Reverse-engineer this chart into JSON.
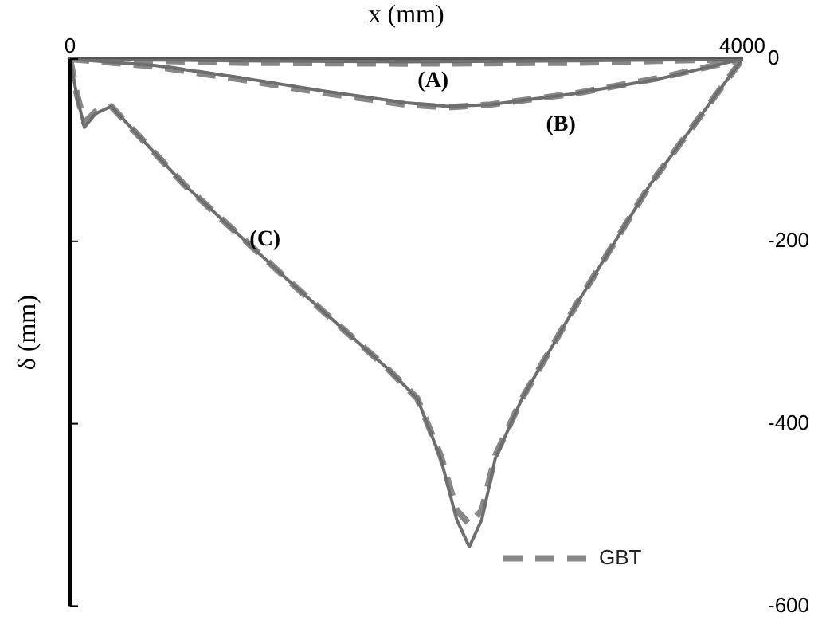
{
  "chart_data": {
    "type": "line",
    "xlabel": "x (mm)",
    "ylabel": "δ (mm)",
    "xlim": [
      0,
      4000
    ],
    "xticks": [
      0,
      4000
    ],
    "ylim": [
      -600,
      0
    ],
    "yticks": [
      0,
      -200,
      -400,
      -600
    ],
    "grid": false,
    "legend": "bottom right",
    "marker": "none",
    "annotations": [
      "(A)",
      "(B)",
      "(C)"
    ],
    "series": [
      {
        "color": "#6e6e6e",
        "line_style": "solid",
        "x": [
          0,
          500,
          1000,
          2000,
          3000,
          3500,
          4000
        ],
        "values": [
          0,
          -1,
          -2,
          -3,
          -2,
          -1,
          0
        ]
      },
      {
        "color": "#6e6e6e",
        "line_style": "solid",
        "x": [
          0,
          500,
          1000,
          1500,
          2000,
          2250,
          2500,
          3000,
          3500,
          4000
        ],
        "values": [
          0,
          -7,
          -20,
          -35,
          -48,
          -52,
          -50,
          -38,
          -22,
          0
        ]
      },
      {
        "color": "#6e6e6e",
        "line_style": "solid",
        "x": [
          0,
          40,
          85,
          150,
          245,
          680,
          1300,
          1880,
          2065,
          2205,
          2300,
          2375,
          2450,
          2530,
          2690,
          3020,
          3450,
          4000
        ],
        "values": [
          0,
          -40,
          -75,
          -60,
          -52,
          -138,
          -243,
          -338,
          -372,
          -438,
          -505,
          -535,
          -505,
          -438,
          -372,
          -267,
          -138,
          0
        ]
      },
      {
        "name": "GBT",
        "color": "#888888",
        "line_style": "dashed",
        "x": [
          0,
          500,
          1000,
          2000,
          3000,
          3500,
          4000
        ],
        "values": [
          0,
          -2,
          -4,
          -5,
          -4,
          -2,
          0
        ]
      },
      {
        "color": "#888888",
        "line_style": "dashed",
        "x": [
          0,
          500,
          1000,
          1500,
          2000,
          2250,
          2500,
          3000,
          3500,
          4000
        ],
        "values": [
          0,
          -8,
          -22,
          -37,
          -50,
          -53,
          -50,
          -38,
          -21,
          0
        ]
      },
      {
        "color": "#888888",
        "line_style": "dashed",
        "x": [
          0,
          40,
          85,
          150,
          245,
          680,
          1300,
          1880,
          2065,
          2205,
          2300,
          2375,
          2450,
          2530,
          2690,
          3020,
          3450,
          4000
        ],
        "values": [
          0,
          -38,
          -70,
          -58,
          -52,
          -138,
          -243,
          -338,
          -372,
          -435,
          -495,
          -510,
          -495,
          -435,
          -372,
          -267,
          -138,
          0
        ]
      }
    ]
  }
}
